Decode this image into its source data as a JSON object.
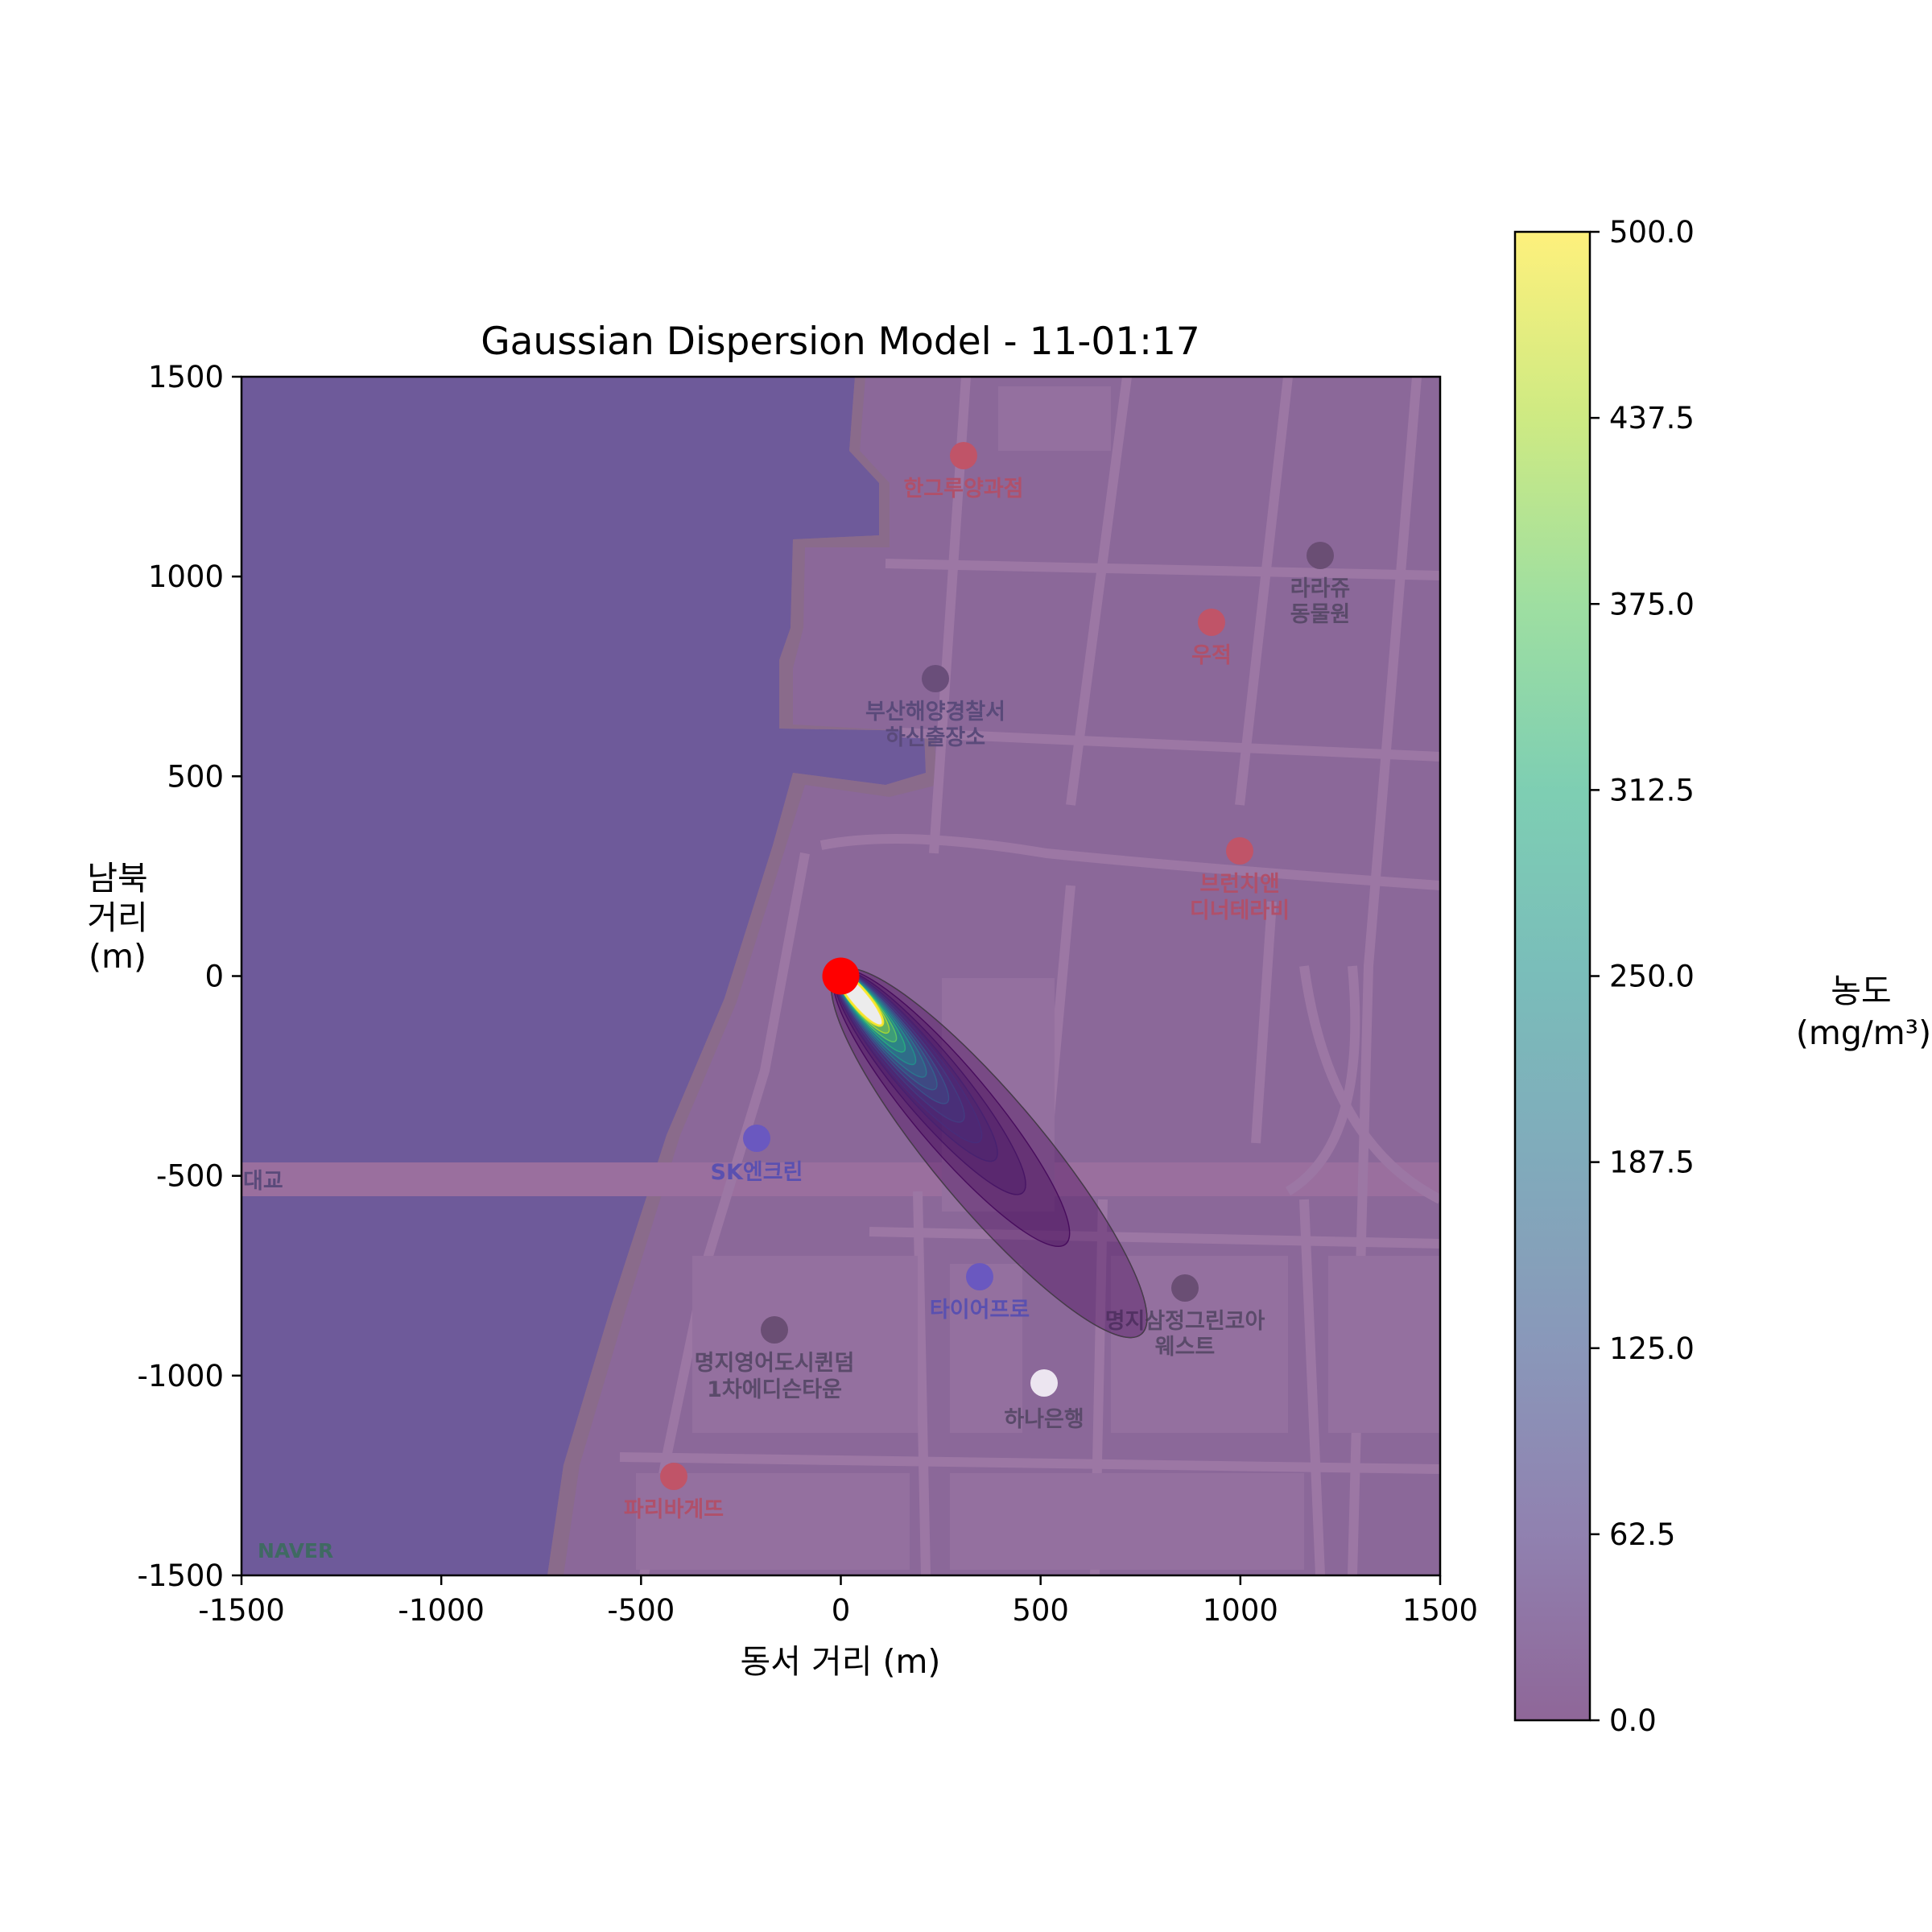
{
  "chart_data": {
    "type": "contour",
    "title": "Gaussian Dispersion Model - 11-01:17",
    "xlabel": "동서 거리 (m)",
    "ylabel_lines": [
      "남북",
      "거리",
      "(m)"
    ],
    "xlim": [
      -1500,
      1500
    ],
    "ylim": [
      -1500,
      1500
    ],
    "xticks": [
      "-1500",
      "-1000",
      "-500",
      "0",
      "500",
      "1000",
      "1500"
    ],
    "xtick_values": [
      -1500,
      -1000,
      -500,
      0,
      500,
      1000,
      1500
    ],
    "yticks": [
      "1500",
      "1000",
      "500",
      "0",
      "-500",
      "-1000",
      "-1500"
    ],
    "ytick_values": [
      1500,
      1000,
      500,
      0,
      -500,
      -1000,
      -1500
    ],
    "grid": false,
    "source": {
      "x": 0,
      "y": 0,
      "color": "#ff0000"
    },
    "plume": {
      "direction": "southeast",
      "bearing_deg": 140,
      "max_concentration": 500
    },
    "contour_levels": [
      2,
      10,
      25,
      45,
      62.5,
      90,
      125,
      160,
      200,
      250,
      312.5,
      375,
      437.5,
      500
    ],
    "colorbar": {
      "label_lines": [
        "농도",
        "(mg/m³)"
      ],
      "min": 0,
      "max": 500,
      "ticks": [
        "0.0",
        "62.5",
        "125.0",
        "187.5",
        "250.0",
        "312.5",
        "375.0",
        "437.5",
        "500.0"
      ],
      "tick_values": [
        0,
        62.5,
        125,
        187.5,
        250,
        312.5,
        375,
        437.5,
        500
      ],
      "colormap": "viridis",
      "alpha": 0.6
    },
    "basemap": {
      "provider": "NAVER",
      "water_color": "#6e5a9a",
      "land_color": "#8b6899",
      "labels": [
        {
          "text": "한그루양과점",
          "color": "#b0506a"
        },
        {
          "text": "라라쥬",
          "color": "#5a4a6a"
        },
        {
          "text": "동물원",
          "color": "#5a4a6a"
        },
        {
          "text": "우적",
          "color": "#b0506a"
        },
        {
          "text": "부산해양경찰서",
          "color": "#5a4a7a"
        },
        {
          "text": "하신출장소",
          "color": "#5a4a7a"
        },
        {
          "text": "브런치앤",
          "color": "#b0506a"
        },
        {
          "text": "디너테라비",
          "color": "#b0506a"
        },
        {
          "text": "SK엔크린",
          "color": "#5a50b0"
        },
        {
          "text": "대교",
          "color": "#5a4a7a"
        },
        {
          "text": "타이어프로",
          "color": "#5a50b0"
        },
        {
          "text": "명지삼정그린코아",
          "color": "#5a4a6a"
        },
        {
          "text": "웨스트",
          "color": "#5a4a6a"
        },
        {
          "text": "명지영어도시퀸덤",
          "color": "#5a4a6a"
        },
        {
          "text": "1차에디슨타운",
          "color": "#5a4a6a"
        },
        {
          "text": "하나은행",
          "color": "#5a4a6a"
        },
        {
          "text": "파리바게뜨",
          "color": "#b0506a"
        }
      ]
    }
  }
}
